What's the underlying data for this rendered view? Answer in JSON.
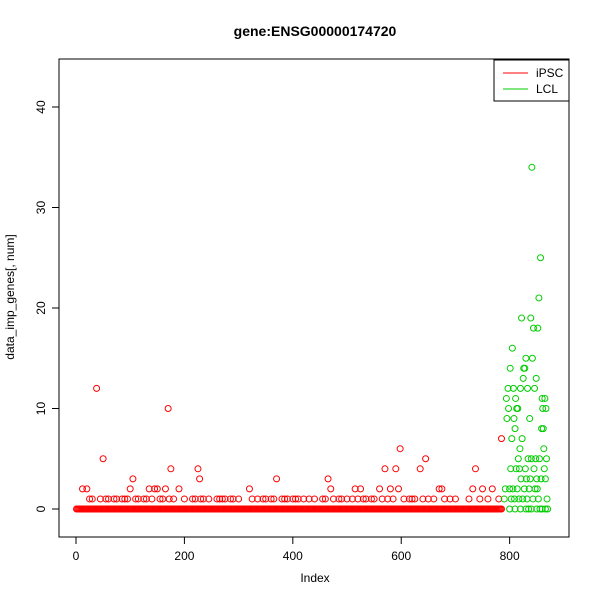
{
  "chart_data": {
    "type": "scatter",
    "title": "gene:ENSG00000174720",
    "xlabel": "Index",
    "ylabel": "data_imp_genes[, num]",
    "xlim": [
      0,
      900
    ],
    "ylim": [
      0,
      44
    ],
    "xticks": [
      0,
      200,
      400,
      600,
      800
    ],
    "yticks": [
      0,
      10,
      20,
      30,
      40
    ],
    "legend": {
      "position": "top-right",
      "entries": [
        {
          "label": "iPSC",
          "color": "#ff0000"
        },
        {
          "label": "LCL",
          "color": "#00cd00"
        }
      ]
    },
    "grid": false,
    "series": [
      {
        "name": "iPSC",
        "color": "#ff0000",
        "marker": "open-circle",
        "baseline": {
          "x_from": 1,
          "x_to": 785,
          "step": 2,
          "y": 0
        },
        "points": [
          [
            12,
            2
          ],
          [
            20,
            2
          ],
          [
            25,
            1
          ],
          [
            30,
            1
          ],
          [
            38,
            12
          ],
          [
            45,
            1
          ],
          [
            50,
            5
          ],
          [
            55,
            1
          ],
          [
            60,
            1
          ],
          [
            70,
            1
          ],
          [
            75,
            1
          ],
          [
            85,
            1
          ],
          [
            90,
            1
          ],
          [
            95,
            1
          ],
          [
            100,
            2
          ],
          [
            105,
            3
          ],
          [
            110,
            1
          ],
          [
            115,
            1
          ],
          [
            125,
            1
          ],
          [
            130,
            1
          ],
          [
            135,
            2
          ],
          [
            140,
            1
          ],
          [
            145,
            2
          ],
          [
            150,
            2
          ],
          [
            155,
            1
          ],
          [
            160,
            1
          ],
          [
            165,
            2
          ],
          [
            170,
            10
          ],
          [
            172,
            1
          ],
          [
            175,
            4
          ],
          [
            180,
            1
          ],
          [
            190,
            2
          ],
          [
            200,
            1
          ],
          [
            215,
            1
          ],
          [
            220,
            1
          ],
          [
            225,
            4
          ],
          [
            228,
            3
          ],
          [
            230,
            1
          ],
          [
            235,
            1
          ],
          [
            245,
            1
          ],
          [
            260,
            1
          ],
          [
            265,
            1
          ],
          [
            270,
            1
          ],
          [
            275,
            1
          ],
          [
            285,
            1
          ],
          [
            290,
            1
          ],
          [
            300,
            1
          ],
          [
            320,
            2
          ],
          [
            325,
            1
          ],
          [
            335,
            1
          ],
          [
            345,
            1
          ],
          [
            350,
            1
          ],
          [
            360,
            1
          ],
          [
            365,
            1
          ],
          [
            370,
            3
          ],
          [
            380,
            1
          ],
          [
            385,
            1
          ],
          [
            390,
            1
          ],
          [
            400,
            1
          ],
          [
            405,
            1
          ],
          [
            410,
            1
          ],
          [
            420,
            1
          ],
          [
            430,
            1
          ],
          [
            440,
            1
          ],
          [
            455,
            1
          ],
          [
            460,
            1
          ],
          [
            465,
            3
          ],
          [
            470,
            2
          ],
          [
            475,
            1
          ],
          [
            485,
            1
          ],
          [
            490,
            1
          ],
          [
            500,
            1
          ],
          [
            510,
            1
          ],
          [
            515,
            2
          ],
          [
            520,
            1
          ],
          [
            525,
            2
          ],
          [
            530,
            1
          ],
          [
            535,
            1
          ],
          [
            545,
            1
          ],
          [
            550,
            1
          ],
          [
            560,
            2
          ],
          [
            565,
            1
          ],
          [
            570,
            4
          ],
          [
            575,
            1
          ],
          [
            580,
            2
          ],
          [
            585,
            1
          ],
          [
            590,
            4
          ],
          [
            595,
            2
          ],
          [
            598,
            6
          ],
          [
            605,
            1
          ],
          [
            615,
            1
          ],
          [
            620,
            1
          ],
          [
            625,
            1
          ],
          [
            635,
            4
          ],
          [
            640,
            1
          ],
          [
            645,
            5
          ],
          [
            650,
            1
          ],
          [
            660,
            1
          ],
          [
            670,
            2
          ],
          [
            675,
            2
          ],
          [
            680,
            1
          ],
          [
            690,
            1
          ],
          [
            700,
            1
          ],
          [
            725,
            1
          ],
          [
            732,
            2
          ],
          [
            737,
            4
          ],
          [
            745,
            1
          ],
          [
            750,
            2
          ],
          [
            760,
            1
          ],
          [
            768,
            2
          ],
          [
            780,
            1
          ],
          [
            785,
            7
          ]
        ]
      },
      {
        "name": "LCL",
        "color": "#00cd00",
        "marker": "open-circle",
        "points": [
          [
            790,
            1
          ],
          [
            792,
            2
          ],
          [
            794,
            11
          ],
          [
            795,
            9
          ],
          [
            797,
            12
          ],
          [
            798,
            10
          ],
          [
            800,
            2
          ],
          [
            801,
            14
          ],
          [
            802,
            4
          ],
          [
            803,
            1
          ],
          [
            804,
            7
          ],
          [
            805,
            16
          ],
          [
            806,
            2
          ],
          [
            807,
            12
          ],
          [
            808,
            9
          ],
          [
            809,
            1
          ],
          [
            810,
            8
          ],
          [
            811,
            11
          ],
          [
            812,
            4
          ],
          [
            813,
            10
          ],
          [
            814,
            2
          ],
          [
            815,
            10
          ],
          [
            816,
            5
          ],
          [
            817,
            1
          ],
          [
            818,
            4
          ],
          [
            819,
            6
          ],
          [
            820,
            12
          ],
          [
            821,
            3
          ],
          [
            822,
            19
          ],
          [
            823,
            7
          ],
          [
            824,
            1
          ],
          [
            825,
            13
          ],
          [
            826,
            14
          ],
          [
            827,
            2
          ],
          [
            828,
            14
          ],
          [
            829,
            4
          ],
          [
            830,
            15
          ],
          [
            831,
            3
          ],
          [
            832,
            1
          ],
          [
            833,
            12
          ],
          [
            834,
            5
          ],
          [
            835,
            0
          ],
          [
            836,
            2
          ],
          [
            837,
            9
          ],
          [
            838,
            3
          ],
          [
            839,
            19
          ],
          [
            840,
            5
          ],
          [
            841,
            34
          ],
          [
            842,
            15
          ],
          [
            843,
            1
          ],
          [
            844,
            18
          ],
          [
            845,
            4
          ],
          [
            846,
            12
          ],
          [
            847,
            2
          ],
          [
            848,
            5
          ],
          [
            849,
            13
          ],
          [
            850,
            3
          ],
          [
            851,
            2
          ],
          [
            852,
            18
          ],
          [
            853,
            1
          ],
          [
            854,
            21
          ],
          [
            855,
            5
          ],
          [
            856,
            0
          ],
          [
            857,
            25
          ],
          [
            858,
            3
          ],
          [
            859,
            8
          ],
          [
            860,
            11
          ],
          [
            861,
            10
          ],
          [
            862,
            8
          ],
          [
            863,
            6
          ],
          [
            864,
            4
          ],
          [
            865,
            11
          ],
          [
            866,
            3
          ],
          [
            867,
            10
          ],
          [
            868,
            5
          ],
          [
            869,
            1
          ],
          [
            870,
            0
          ],
          [
            800,
            0
          ],
          [
            810,
            0
          ],
          [
            820,
            0
          ],
          [
            830,
            0
          ],
          [
            840,
            0
          ],
          [
            850,
            0
          ],
          [
            860,
            0
          ],
          [
            866,
            0
          ]
        ]
      }
    ]
  }
}
